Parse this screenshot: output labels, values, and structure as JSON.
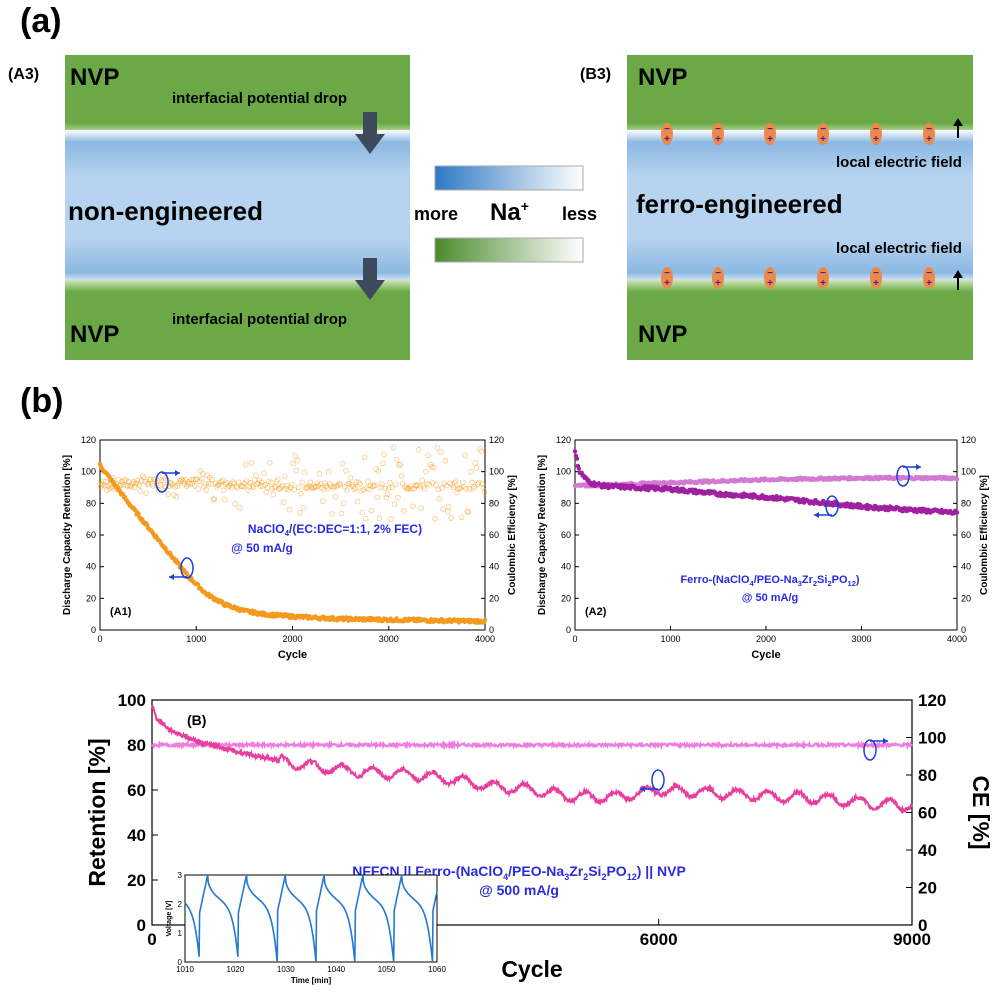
{
  "panel_labels": {
    "a": "(a)",
    "b": "(b)"
  },
  "schematic": {
    "a3": {
      "tag": "(A3)",
      "top_label": "NVP",
      "bottom_label": "NVP",
      "top_drop": "interfacial potential drop",
      "bottom_drop": "interfacial potential drop",
      "center": "non-engineered"
    },
    "b3": {
      "tag": "(B3)",
      "top_label": "NVP",
      "bottom_label": "NVP",
      "center": "ferro-engineered",
      "field_top": "local electric field",
      "field_bottom": "local electric field"
    },
    "legend": {
      "more": "more",
      "na": "Na",
      "na_sup": "+",
      "less": "less"
    },
    "colors": {
      "nvp_green": "#6aa945",
      "electrolyte_blue": "#a9ccec",
      "dipole_orange": "#f0874a",
      "arrow_gray": "#3d4a5c"
    }
  },
  "chart_data": [
    {
      "id": "A1",
      "type": "scatter",
      "tag": "(A1)",
      "xlabel": "Cycle",
      "ylabel_left": "Discharge Capacity Retention [%]",
      "ylabel_right": "Coulombic Efficiency [%]",
      "xlim": [
        0,
        4000
      ],
      "ylim_left": [
        0,
        120
      ],
      "ylim_right": [
        0,
        120
      ],
      "xticks": [
        0,
        1000,
        2000,
        3000,
        4000
      ],
      "yticks": [
        0,
        20,
        40,
        60,
        80,
        100,
        120
      ],
      "annotation_line1": "NaClO",
      "annotation_sub1": "4",
      "annotation_rest1": "/(EC:DEC=1:1, 2% FEC)",
      "annotation_line2": "@ 50 mA/g",
      "color": "#f39a1e",
      "series": [
        {
          "axis": "left",
          "x": [
            0,
            50,
            150,
            300,
            500,
            700,
            900,
            1100,
            1300,
            1500,
            1700,
            2000,
            2500,
            3000,
            3500,
            4000
          ],
          "values": [
            104,
            100,
            92,
            80,
            65,
            50,
            35,
            23,
            16,
            12,
            10,
            8.5,
            7,
            6.5,
            6,
            5.5
          ]
        },
        {
          "axis": "right",
          "x": [
            0,
            500,
            1000,
            1500,
            2000,
            2500,
            3000,
            3500,
            4000
          ],
          "values": [
            92,
            93,
            93,
            92,
            91,
            91,
            91,
            91,
            91
          ],
          "scatter_min": [
            88,
            86,
            80,
            76,
            72,
            70,
            70,
            70,
            72
          ],
          "scatter_max": [
            96,
            98,
            102,
            106,
            110,
            114,
            116,
            116,
            116
          ]
        }
      ]
    },
    {
      "id": "A2",
      "type": "scatter",
      "tag": "(A2)",
      "xlabel": "Cycle",
      "ylabel_left": "Discharge Capacity Retention [%]",
      "ylabel_right": "Coulombic Efficiency [%]",
      "xlim": [
        0,
        4000
      ],
      "ylim_left": [
        0,
        120
      ],
      "ylim_right": [
        0,
        120
      ],
      "xticks": [
        0,
        1000,
        2000,
        3000,
        4000
      ],
      "yticks": [
        0,
        20,
        40,
        60,
        80,
        100,
        120
      ],
      "annotation_line1": "Ferro-(NaClO",
      "annotation_sub1": "4",
      "annotation_mid1": "/PEO-Na",
      "annotation_sub2": "3",
      "annotation_mid2": "Zr",
      "annotation_sub3": "2",
      "annotation_mid3": "Si",
      "annotation_sub4": "2",
      "annotation_mid4": "PO",
      "annotation_sub5": "12",
      "annotation_end": ")",
      "annotation_line2": "@ 50 mA/g",
      "colors": {
        "retention": "#a020a0",
        "ce": "#d27ad2"
      },
      "series": [
        {
          "name": "retention",
          "axis": "left",
          "x": [
            0,
            50,
            150,
            300,
            600,
            1000,
            1500,
            2000,
            2500,
            3000,
            3500,
            4000
          ],
          "values": [
            112,
            100,
            93,
            91,
            90,
            89,
            86,
            84,
            81,
            78,
            76,
            74
          ]
        },
        {
          "name": "ce",
          "axis": "right",
          "x": [
            0,
            500,
            1000,
            1500,
            2000,
            2500,
            3000,
            3500,
            4000
          ],
          "values": [
            91,
            92,
            93,
            94,
            95,
            95.5,
            96,
            96,
            96
          ]
        }
      ]
    },
    {
      "id": "B",
      "type": "line",
      "tag": "(B)",
      "xlabel": "Cycle",
      "ylabel_left": "Retention [%]",
      "ylabel_right": "CE [%]",
      "xlim": [
        0,
        9000
      ],
      "ylim_left": [
        0,
        100
      ],
      "ylim_right": [
        0,
        120
      ],
      "xticks": [
        0,
        3000,
        6000,
        9000
      ],
      "yticks_left": [
        0,
        20,
        40,
        60,
        80,
        100
      ],
      "yticks_right": [
        0,
        20,
        40,
        60,
        80,
        100,
        120
      ],
      "annotation_pre": "NFFCN || Ferro-(NaClO",
      "annotation_sub1": "4",
      "annotation_mid1": "/PEO-Na",
      "annotation_sub2": "3",
      "annotation_mid2": "Zr",
      "annotation_sub3": "2",
      "annotation_mid3": "Si",
      "annotation_sub4": "2",
      "annotation_mid4": "PO",
      "annotation_sub5": "12",
      "annotation_end": ") || NVP",
      "annotation_line2": "@ 500 mA/g",
      "colors": {
        "retention": "#e83e9c",
        "ce": "#f07ce0"
      },
      "series": [
        {
          "name": "retention",
          "axis": "left",
          "x": [
            0,
            50,
            200,
            500,
            1000,
            1500,
            2000,
            2500,
            3000,
            3500,
            4000,
            4500,
            5000,
            5500,
            6000,
            6500,
            7000,
            7500,
            8000,
            8500,
            9000
          ],
          "values": [
            98,
            92,
            87,
            82,
            77,
            73,
            70,
            68,
            67,
            65,
            62,
            60,
            57,
            57,
            60,
            59,
            58,
            57,
            56,
            54,
            53
          ]
        },
        {
          "name": "ce",
          "axis": "right",
          "x": [
            0,
            100,
            1000,
            3000,
            6000,
            9000
          ],
          "values": [
            96,
            96,
            96,
            96,
            96,
            96
          ]
        }
      ],
      "inset": {
        "type": "line",
        "xlabel": "Time [min]",
        "ylabel": "Voltage [V]",
        "xlim": [
          1010,
          1060
        ],
        "ylim": [
          0,
          3
        ],
        "xticks": [
          1010,
          1020,
          1030,
          1040,
          1050,
          1060
        ],
        "yticks": [
          0,
          1,
          2,
          3
        ],
        "color": "#2378d0",
        "cycle_period_min": 7.7,
        "first_peak_min": 1014.5,
        "x": [
          1010,
          1014.5,
          1019.5,
          1060
        ],
        "values": [
          1.8,
          3.0,
          0.0,
          2.0
        ]
      }
    }
  ]
}
